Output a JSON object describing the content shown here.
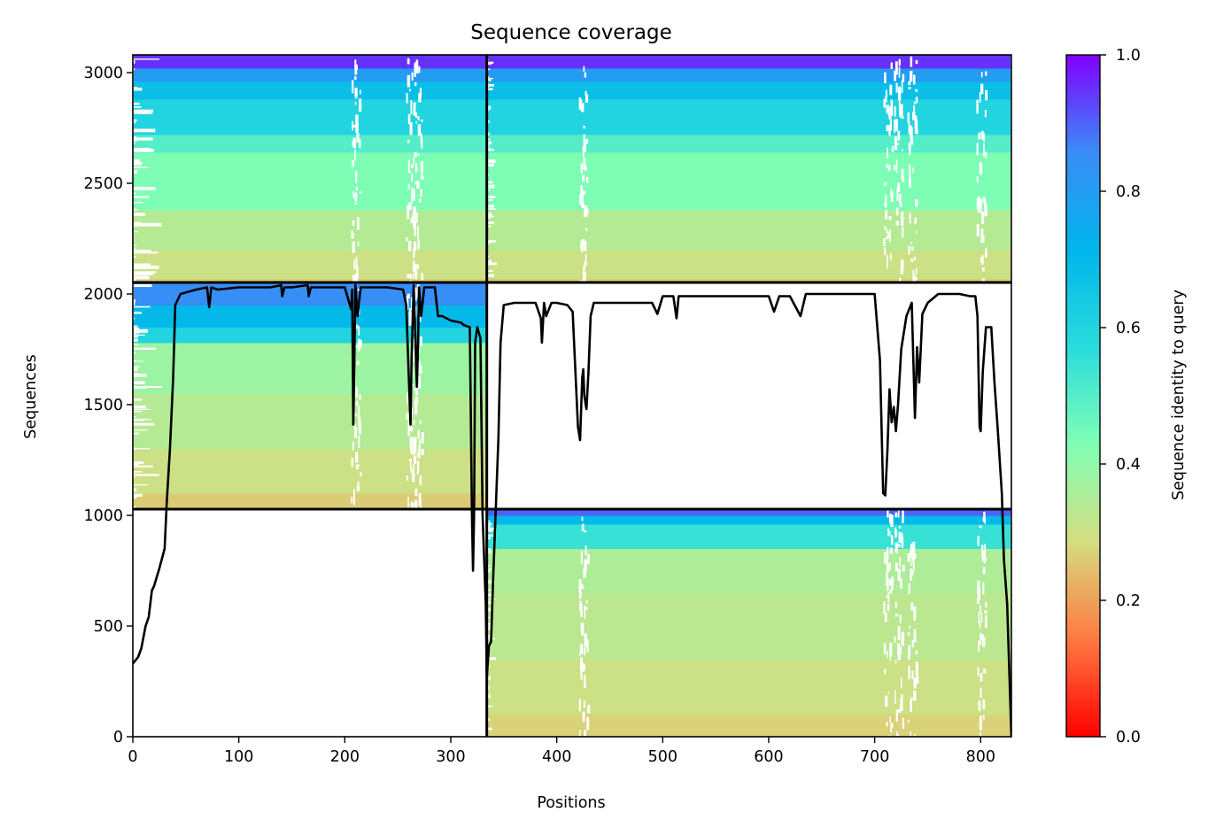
{
  "chart_data": {
    "type": "heatmap",
    "title": "Sequence coverage",
    "xlabel": "Positions",
    "ylabel": "Sequences",
    "xlim": [
      0,
      829
    ],
    "ylim": [
      0,
      3080
    ],
    "xticks": [
      0,
      100,
      200,
      300,
      400,
      500,
      600,
      700,
      800
    ],
    "yticks": [
      0,
      500,
      1000,
      1500,
      2000,
      2500,
      3000
    ],
    "colorbar": {
      "label": "Sequence identity to query",
      "colormap": "rainbow_r",
      "range": [
        0,
        1
      ],
      "ticks": [
        "0.0",
        "0.2",
        "0.4",
        "0.6",
        "0.8",
        "1.0"
      ],
      "stops": [
        "#ff0000",
        "#ff7942",
        "#d4dd80",
        "#7ffeb4",
        "#2adcdc",
        "#00b5eb",
        "#3a8cf7",
        "#8000ff"
      ]
    },
    "chain_boundaries": {
      "x_divider": 334,
      "y_dividers": [
        1028,
        2052
      ]
    },
    "blocks": [
      {
        "name": "chain 1 paired",
        "x": [
          0,
          334
        ],
        "y": [
          2052,
          3080
        ],
        "identity_bands": [
          {
            "y": [
              2052,
              2070
            ],
            "identity": 0.26
          },
          {
            "y": [
              2070,
              2200
            ],
            "identity": 0.3
          },
          {
            "y": [
              2200,
              2380
            ],
            "identity": 0.34
          },
          {
            "y": [
              2380,
              2640
            ],
            "identity": 0.43
          },
          {
            "y": [
              2640,
              2720
            ],
            "identity": 0.5
          },
          {
            "y": [
              2720,
              2880
            ],
            "identity": 0.6
          },
          {
            "y": [
              2880,
              2960
            ],
            "identity": 0.68
          },
          {
            "y": [
              2960,
              3020
            ],
            "identity": 0.8
          },
          {
            "y": [
              3020,
              3080
            ],
            "identity": 0.95
          }
        ]
      },
      {
        "name": "chain 2 paired",
        "x": [
          334,
          829
        ],
        "y": [
          2052,
          3080
        ],
        "identity_bands": [
          {
            "y": [
              2052,
              2070
            ],
            "identity": 0.26
          },
          {
            "y": [
              2070,
              2200
            ],
            "identity": 0.3
          },
          {
            "y": [
              2200,
              2380
            ],
            "identity": 0.34
          },
          {
            "y": [
              2380,
              2640
            ],
            "identity": 0.43
          },
          {
            "y": [
              2640,
              2720
            ],
            "identity": 0.5
          },
          {
            "y": [
              2720,
              2880
            ],
            "identity": 0.6
          },
          {
            "y": [
              2880,
              2960
            ],
            "identity": 0.68
          },
          {
            "y": [
              2960,
              3020
            ],
            "identity": 0.8
          },
          {
            "y": [
              3020,
              3080
            ],
            "identity": 0.95
          }
        ]
      },
      {
        "name": "chain 1 unpaired",
        "x": [
          0,
          334
        ],
        "y": [
          1028,
          2052
        ],
        "identity_bands": [
          {
            "y": [
              1028,
              1100
            ],
            "identity": 0.26
          },
          {
            "y": [
              1100,
              1300
            ],
            "identity": 0.3
          },
          {
            "y": [
              1300,
              1550
            ],
            "identity": 0.34
          },
          {
            "y": [
              1550,
              1780
            ],
            "identity": 0.38
          },
          {
            "y": [
              1780,
              1850
            ],
            "identity": 0.6
          },
          {
            "y": [
              1850,
              1950
            ],
            "identity": 0.7
          },
          {
            "y": [
              1950,
              2052
            ],
            "identity": 0.85
          }
        ]
      },
      {
        "name": "chain 2 unpaired",
        "x": [
          334,
          829
        ],
        "y": [
          0,
          1028
        ],
        "identity_bands": [
          {
            "y": [
              0,
              100
            ],
            "identity": 0.27
          },
          {
            "y": [
              100,
              350
            ],
            "identity": 0.3
          },
          {
            "y": [
              350,
              650
            ],
            "identity": 0.33
          },
          {
            "y": [
              650,
              850
            ],
            "identity": 0.35
          },
          {
            "y": [
              850,
              960
            ],
            "identity": 0.55
          },
          {
            "y": [
              960,
              1000
            ],
            "identity": 0.7
          },
          {
            "y": [
              1000,
              1028
            ],
            "identity": 0.9
          }
        ]
      }
    ],
    "coverage_line": {
      "x": [
        0,
        5,
        8,
        12,
        15,
        18,
        20,
        25,
        30,
        32,
        35,
        38,
        40,
        45,
        60,
        70,
        72,
        74,
        80,
        100,
        130,
        140,
        141,
        143,
        150,
        165,
        166,
        168,
        180,
        200,
        206,
        207,
        208,
        209,
        210,
        212,
        215,
        220,
        240,
        255,
        258,
        262,
        263,
        265,
        268,
        269,
        270,
        272,
        275,
        285,
        288,
        292,
        300,
        310,
        312,
        318,
        320,
        321,
        322,
        323,
        325,
        328,
        330,
        333,
        334,
        336,
        338,
        340,
        345,
        347,
        350,
        360,
        380,
        385,
        386,
        388,
        390,
        395,
        400,
        410,
        415,
        420,
        422,
        424,
        425,
        426,
        428,
        430,
        432,
        435,
        440,
        460,
        490,
        495,
        500,
        510,
        513,
        515,
        520,
        560,
        600,
        605,
        610,
        620,
        630,
        635,
        640,
        650,
        680,
        700,
        705,
        708,
        710,
        712,
        714,
        716,
        718,
        720,
        722,
        725,
        730,
        735,
        738,
        740,
        742,
        745,
        750,
        760,
        780,
        790,
        795,
        797,
        799,
        800,
        802,
        805,
        810,
        813,
        816,
        820,
        822,
        825,
        827,
        829
      ],
      "y": [
        330,
        360,
        400,
        500,
        540,
        660,
        680,
        760,
        850,
        1060,
        1300,
        1620,
        1950,
        2000,
        2020,
        2030,
        1940,
        2030,
        2020,
        2030,
        2030,
        2040,
        1990,
        2030,
        2030,
        2040,
        1990,
        2030,
        2030,
        2030,
        1930,
        2020,
        1410,
        1700,
        2040,
        1900,
        2030,
        2030,
        2030,
        2020,
        1950,
        1410,
        1700,
        2040,
        1580,
        1750,
        2030,
        1900,
        2030,
        2030,
        1900,
        1900,
        1880,
        1870,
        1860,
        1850,
        1000,
        750,
        1000,
        1780,
        1850,
        1800,
        1000,
        600,
        270,
        410,
        430,
        720,
        1350,
        1780,
        1950,
        1960,
        1960,
        1890,
        1780,
        1960,
        1900,
        1960,
        1960,
        1950,
        1920,
        1400,
        1340,
        1620,
        1660,
        1540,
        1480,
        1650,
        1900,
        1960,
        1960,
        1960,
        1960,
        1910,
        1990,
        1990,
        1890,
        1990,
        1990,
        1990,
        1990,
        1920,
        1990,
        1990,
        1900,
        2000,
        2000,
        2000,
        2000,
        2000,
        1700,
        1100,
        1090,
        1290,
        1570,
        1420,
        1490,
        1380,
        1500,
        1750,
        1900,
        1960,
        1440,
        1760,
        1600,
        1910,
        1960,
        2000,
        2000,
        1990,
        1990,
        1900,
        1400,
        1380,
        1650,
        1850,
        1850,
        1600,
        1400,
        1100,
        800,
        600,
        300,
        0
      ]
    }
  }
}
